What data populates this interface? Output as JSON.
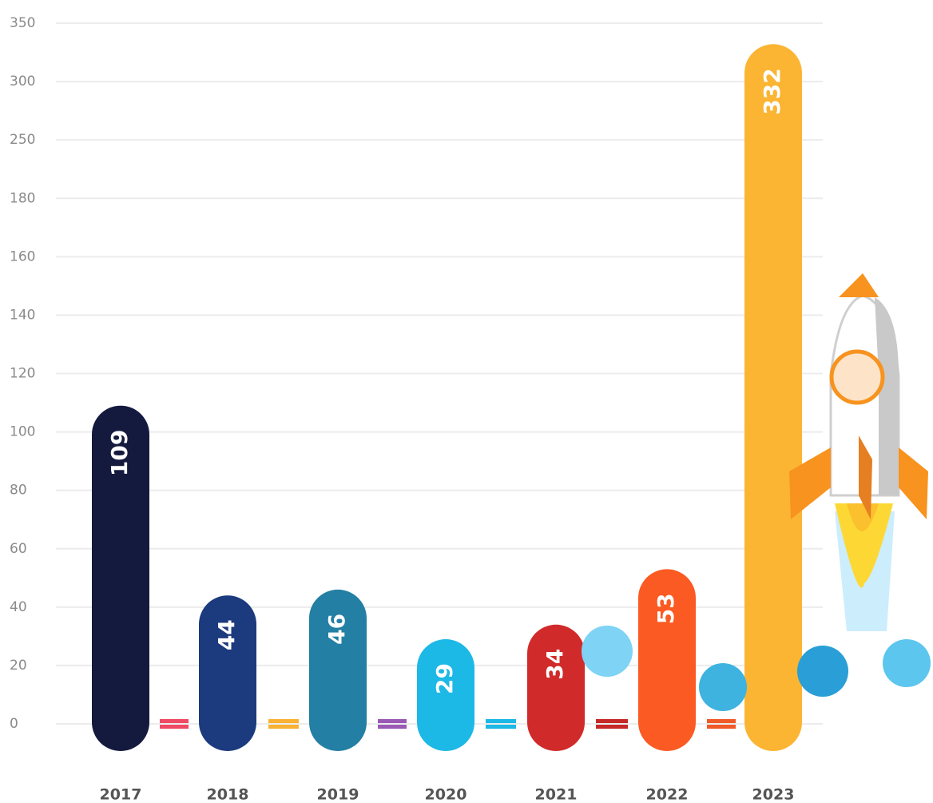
{
  "chart_data": {
    "type": "bar",
    "categories": [
      "2017",
      "2018",
      "2019",
      "2020",
      "2021",
      "2022",
      "2023"
    ],
    "values": [
      109,
      44,
      46,
      29,
      34,
      53,
      332
    ],
    "colors": [
      "#141a3e",
      "#1c3a7e",
      "#237fa3",
      "#1cb8e6",
      "#d12a2a",
      "#fb5a22",
      "#fbb533"
    ],
    "ylim": [
      0,
      350
    ],
    "yticks": [
      0,
      20,
      40,
      60,
      80,
      100,
      120,
      140,
      160,
      180,
      250,
      300,
      350
    ],
    "grid": true
  }
}
